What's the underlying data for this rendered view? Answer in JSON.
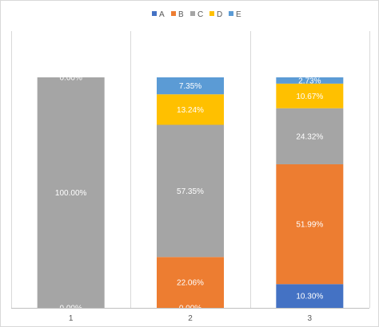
{
  "chart_data": {
    "type": "bar",
    "stacked": true,
    "percent_stacked": true,
    "categories": [
      "1",
      "2",
      "3"
    ],
    "series": [
      {
        "name": "A",
        "color": "#4472c4",
        "values": [
          0.0,
          0.0,
          10.3
        ],
        "labels": [
          "0.00%",
          "0.00%",
          "10.30%"
        ]
      },
      {
        "name": "B",
        "color": "#ed7d31",
        "values": [
          0.0,
          22.06,
          51.99
        ],
        "labels": [
          "",
          "22.06%",
          "51.99%"
        ]
      },
      {
        "name": "C",
        "color": "#a5a5a5",
        "values": [
          100.0,
          57.35,
          24.32
        ],
        "labels": [
          "100.00%",
          "57.35%",
          "24.32%"
        ]
      },
      {
        "name": "D",
        "color": "#ffc000",
        "values": [
          0.0,
          13.24,
          10.67
        ],
        "labels": [
          "",
          "13.24%",
          "10.67%"
        ]
      },
      {
        "name": "E",
        "color": "#5b9bd5",
        "values": [
          0.0,
          7.35,
          2.73
        ],
        "labels": [
          "0.00%",
          "7.35%",
          "2.73%"
        ]
      }
    ],
    "title": "",
    "xlabel": "",
    "ylabel": "",
    "ylim": [
      0,
      100
    ],
    "legend_position": "top",
    "grid": "vertical category separators"
  }
}
